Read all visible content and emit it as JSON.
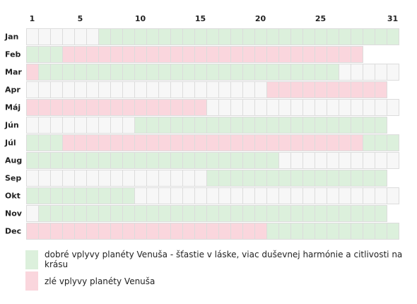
{
  "chart_data": {
    "type": "heatmap",
    "day_ticks": [
      "1",
      "5",
      "10",
      "15",
      "20",
      "25",
      "31"
    ],
    "months": [
      {
        "label": "Jan",
        "days": 31,
        "good": [
          [
            7,
            31
          ]
        ],
        "bad": []
      },
      {
        "label": "Feb",
        "days": 28,
        "good": [
          [
            1,
            3
          ]
        ],
        "bad": [
          [
            4,
            28
          ]
        ]
      },
      {
        "label": "Mar",
        "days": 31,
        "good": [
          [
            2,
            26
          ]
        ],
        "bad": [
          [
            1,
            1
          ]
        ]
      },
      {
        "label": "Apr",
        "days": 30,
        "good": [],
        "bad": [
          [
            21,
            30
          ]
        ]
      },
      {
        "label": "Máj",
        "days": 31,
        "good": [],
        "bad": [
          [
            1,
            15
          ]
        ]
      },
      {
        "label": "Jún",
        "days": 30,
        "good": [
          [
            10,
            30
          ]
        ],
        "bad": []
      },
      {
        "label": "Júl",
        "days": 31,
        "good": [
          [
            1,
            3
          ],
          [
            29,
            31
          ]
        ],
        "bad": [
          [
            4,
            28
          ]
        ]
      },
      {
        "label": "Aug",
        "days": 31,
        "good": [
          [
            1,
            21
          ]
        ],
        "bad": []
      },
      {
        "label": "Sep",
        "days": 30,
        "good": [
          [
            16,
            30
          ]
        ],
        "bad": []
      },
      {
        "label": "Okt",
        "days": 31,
        "good": [
          [
            1,
            9
          ]
        ],
        "bad": []
      },
      {
        "label": "Nov",
        "days": 30,
        "good": [
          [
            2,
            30
          ]
        ],
        "bad": []
      },
      {
        "label": "Dec",
        "days": 31,
        "good": [
          [
            21,
            31
          ]
        ],
        "bad": [
          [
            1,
            20
          ]
        ]
      }
    ],
    "legend": [
      {
        "key": "good",
        "label": "dobré vplyvy planéty Venuša - šťastie v láske, viac duševnej harmónie a citlivosti na krásu"
      },
      {
        "key": "bad",
        "label": "zlé vplyvy planéty Venuša"
      }
    ]
  },
  "colors": {
    "good": "#dcf0dc",
    "bad": "#fad6dd",
    "neutral": "#f7f7f7",
    "cell_border": "#dcdcdc",
    "text": "#222222"
  }
}
